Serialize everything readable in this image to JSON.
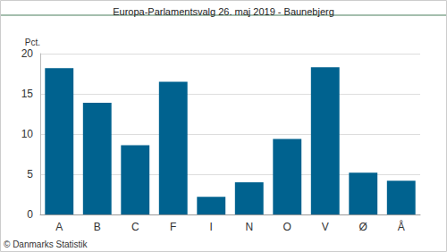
{
  "chart_data": {
    "type": "bar",
    "title": "Europa-Parlamentsvalg 26. maj 2019 - Baunebjerg",
    "ylabel": "Pct.",
    "annotations": [
      "© Danmarks Statistik"
    ],
    "categories": [
      "A",
      "B",
      "C",
      "F",
      "I",
      "N",
      "O",
      "V",
      "Ø",
      "Å"
    ],
    "values": [
      18.2,
      13.9,
      8.6,
      16.5,
      2.2,
      4.0,
      9.4,
      18.3,
      5.2,
      4.2
    ],
    "color": "#00628f",
    "ylim": [
      0,
      20
    ],
    "yticks": [
      0,
      5,
      10,
      15,
      20
    ],
    "grid": true
  }
}
